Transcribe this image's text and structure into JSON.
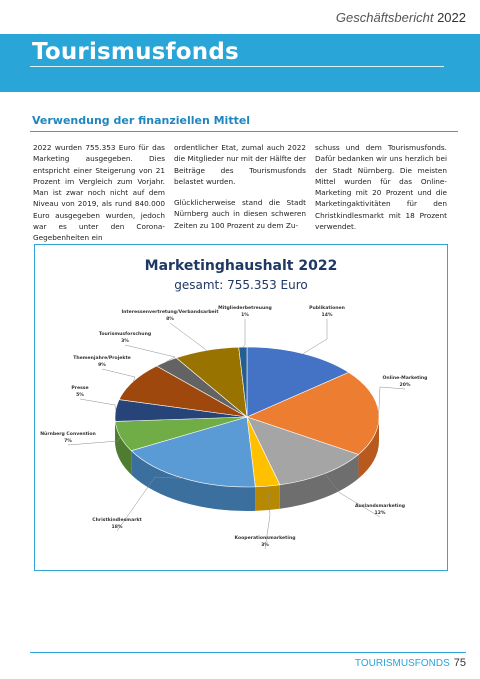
{
  "header": {
    "report": "Geschäftsbericht",
    "year": "2022"
  },
  "banner": {
    "title": "Tourismusfonds"
  },
  "section": {
    "title": "Verwendung der finanziellen Mittel"
  },
  "body": {
    "col1": [
      "2022 wurden 755.353 Euro für das Marketing ausgegeben. Dies entspricht einer Steigerung von 21 Prozent im Vergleich zum Vorjahr. Man ist zwar noch nicht auf dem Niveau von 2019, als rund 840.000 Euro ausgegeben wurden, jedoch war es unter den Corona-Gegebenheiten ein"
    ],
    "col2": [
      "ordentlicher Etat, zumal auch 2022 die Mitglieder nur mit der Hälfte der Beiträge des Tourismusfonds belastet wurden.",
      "Glücklicherweise stand die Stadt Nürnberg auch in diesen schweren Zeiten zu 100 Prozent zu dem Zu-"
    ],
    "col3": [
      "schuss und dem Tourismusfonds. Dafür bedanken wir uns herzlich bei der Stadt Nürnberg. Die meisten Mittel wurden für das Online-Marketing mit 20 Prozent und die Marketingaktivitäten für den Christkindlesmarkt mit 18 Prozent verwendet."
    ]
  },
  "chart": {
    "title": "Marketinghaushalt 2022",
    "subtitle_prefix": "gesamt:",
    "subtitle_value": "755.353 Euro"
  },
  "chart_data": {
    "type": "pie",
    "title": "Marketinghaushalt 2022",
    "subtitle": "gesamt: 755.353 Euro",
    "slices": [
      {
        "label": "Publikationen",
        "value": 14,
        "color": "#4472c4",
        "side": "#2f5597"
      },
      {
        "label": "Online-Marketing",
        "value": 20,
        "color": "#ed7d31",
        "side": "#b85a1e"
      },
      {
        "label": "Auslandsmarketing",
        "value": 12,
        "color": "#a5a5a5",
        "side": "#6e6e6e"
      },
      {
        "label": "Kooperationsmarketing",
        "value": 3,
        "color": "#ffc000",
        "side": "#b78900"
      },
      {
        "label": "Christkindlesmarkt",
        "value": 18,
        "color": "#5b9bd5",
        "side": "#3a6f9e"
      },
      {
        "label": "Nürnberg Convention",
        "value": 7,
        "color": "#70ad47",
        "side": "#4e7d31"
      },
      {
        "label": "Presse",
        "value": 5,
        "color": "#264478",
        "side": "#172b4d"
      },
      {
        "label": "Themenjahre/Projekte",
        "value": 9,
        "color": "#9e480e",
        "side": "#6b300a"
      },
      {
        "label": "Tourismusforschung",
        "value": 3,
        "color": "#636363",
        "side": "#3f3f3f"
      },
      {
        "label": "Interessenvertretung/Verbandsarbeit",
        "value": 8,
        "color": "#997300",
        "side": "#6b5000"
      },
      {
        "label": "Mitgliederbetreuung",
        "value": 1,
        "color": "#255e91",
        "side": "#173d5e"
      }
    ],
    "unit": "%"
  },
  "footer": {
    "label": "TOURISMUSFONDS",
    "page": "75"
  }
}
